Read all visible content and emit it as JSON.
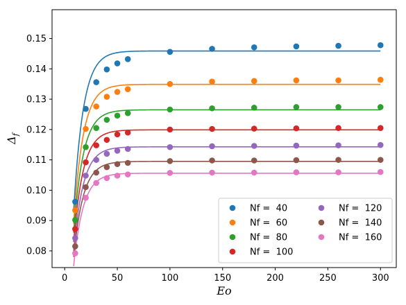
{
  "chart_data": {
    "type": "scatter",
    "xlabel": "Eo",
    "ylabel": "Δf",
    "xlim": [
      -12,
      315
    ],
    "ylim": [
      0.0745,
      0.1595
    ],
    "xticks": [
      0,
      50,
      100,
      150,
      200,
      250,
      300
    ],
    "yticks": [
      0.08,
      0.09,
      0.1,
      0.11,
      0.12,
      0.13,
      0.14,
      0.15
    ],
    "grid": false,
    "legend_position": "lower-right",
    "legend_columns": 2,
    "fit_model": {
      "x0": 8.5,
      "x_end": 300
    },
    "series": [
      {
        "name": "Nf =  40",
        "color": "#1f77b4",
        "fit_asymptote": 0.1459,
        "fit_start": 0.093,
        "fit_rate": 0.11,
        "x": [
          10,
          20,
          30,
          40,
          50,
          60,
          100,
          140,
          180,
          220,
          260,
          300
        ],
        "y": [
          0.0962,
          0.1268,
          0.1356,
          0.1398,
          0.1418,
          0.1432,
          0.1456,
          0.1466,
          0.1471,
          0.1474,
          0.1476,
          0.1478
        ]
      },
      {
        "name": "Nf =  60",
        "color": "#ff7f0e",
        "fit_asymptote": 0.1349,
        "fit_start": 0.089,
        "fit_rate": 0.11,
        "x": [
          10,
          20,
          30,
          40,
          50,
          60,
          100,
          140,
          180,
          220,
          260,
          300
        ],
        "y": [
          0.0934,
          0.1202,
          0.1276,
          0.1308,
          0.1324,
          0.1333,
          0.135,
          0.1358,
          0.136,
          0.1362,
          0.1362,
          0.1364
        ]
      },
      {
        "name": "Nf =  80",
        "color": "#2ca02c",
        "fit_asymptote": 0.1265,
        "fit_start": 0.086,
        "fit_rate": 0.11,
        "x": [
          10,
          20,
          30,
          40,
          50,
          60,
          100,
          140,
          180,
          220,
          260,
          300
        ],
        "y": [
          0.0902,
          0.1142,
          0.1205,
          0.1232,
          0.1246,
          0.1254,
          0.1266,
          0.127,
          0.1272,
          0.1274,
          0.1274,
          0.1274
        ]
      },
      {
        "name": "Nf =  100",
        "color": "#d62728",
        "fit_asymptote": 0.1199,
        "fit_start": 0.083,
        "fit_rate": 0.11,
        "x": [
          10,
          20,
          30,
          40,
          50,
          60,
          100,
          140,
          180,
          220,
          260,
          300
        ],
        "y": [
          0.0872,
          0.1092,
          0.1148,
          0.1166,
          0.1184,
          0.119,
          0.12,
          0.1202,
          0.1203,
          0.1204,
          0.1205,
          0.1205
        ]
      },
      {
        "name": "Nf =  120",
        "color": "#9467bd",
        "fit_asymptote": 0.1143,
        "fit_start": 0.08,
        "fit_rate": 0.11,
        "x": [
          10,
          20,
          30,
          40,
          50,
          60,
          100,
          140,
          180,
          220,
          260,
          300
        ],
        "y": [
          0.0842,
          0.1048,
          0.11,
          0.112,
          0.113,
          0.1136,
          0.1142,
          0.1145,
          0.1146,
          0.1147,
          0.1148,
          0.1149
        ]
      },
      {
        "name": "Nf =  140",
        "color": "#8c564b",
        "fit_asymptote": 0.1095,
        "fit_start": 0.078,
        "fit_rate": 0.11,
        "x": [
          10,
          20,
          30,
          40,
          50,
          60,
          100,
          140,
          180,
          220,
          260,
          300
        ],
        "y": [
          0.0815,
          0.101,
          0.1058,
          0.1076,
          0.1086,
          0.109,
          0.1096,
          0.1098,
          0.1098,
          0.1099,
          0.11,
          0.11
        ]
      },
      {
        "name": "Nf =  160",
        "color": "#e377c2",
        "fit_asymptote": 0.1056,
        "fit_start": 0.075,
        "fit_rate": 0.11,
        "x": [
          10,
          20,
          30,
          40,
          50,
          60,
          100,
          140,
          180,
          220,
          260,
          300
        ],
        "y": [
          0.0792,
          0.0975,
          0.1024,
          0.104,
          0.1048,
          0.1052,
          0.1057,
          0.1058,
          0.1058,
          0.1059,
          0.1059,
          0.106
        ]
      }
    ]
  }
}
